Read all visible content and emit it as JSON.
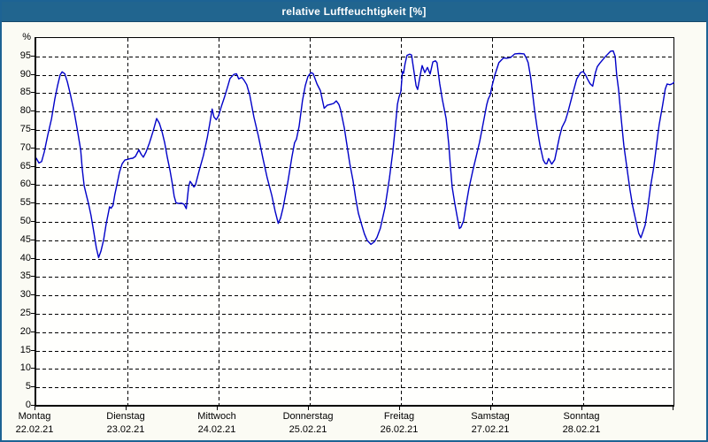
{
  "window": {
    "title": "relative Luftfeuchtigkeit [%]",
    "title_bar_color": "#21658f",
    "border_color": "#1d6394"
  },
  "chart_data": {
    "type": "line",
    "title": "relative Luftfeuchtigkeit [%]",
    "unit_label": "%",
    "ylabel": "%",
    "ylim": [
      0,
      100
    ],
    "y_tick_step": 5,
    "y_tick_labels": [
      "0",
      "5",
      "10",
      "15",
      "20",
      "25",
      "30",
      "35",
      "40",
      "45",
      "50",
      "55",
      "60",
      "65",
      "70",
      "75",
      "80",
      "85",
      "90",
      "95"
    ],
    "grid": "dashed-black",
    "legend": "none",
    "line_color": "#0000c8",
    "hours_per_day": 24,
    "x_axis_days": [
      {
        "name": "Montag",
        "date": "22.02.21"
      },
      {
        "name": "Dienstag",
        "date": "23.02.21"
      },
      {
        "name": "Mittwoch",
        "date": "24.02.21"
      },
      {
        "name": "Donnerstag",
        "date": "25.02.21"
      },
      {
        "name": "Freitag",
        "date": "26.02.21"
      },
      {
        "name": "Samstag",
        "date": "27.02.21"
      },
      {
        "name": "Sonntag",
        "date": "28.02.21"
      }
    ],
    "series": [
      {
        "name": "relative Luftfeuchtigkeit",
        "unit": "%",
        "points_hour_value": [
          [
            0,
            67.3
          ],
          [
            0.7,
            66
          ],
          [
            1.4,
            66.4
          ],
          [
            2.1,
            69
          ],
          [
            3,
            73.5
          ],
          [
            4,
            78
          ],
          [
            4.9,
            83.5
          ],
          [
            5.6,
            87
          ],
          [
            6.3,
            90
          ],
          [
            6.8,
            90.8
          ],
          [
            7.5,
            90.3
          ],
          [
            8.2,
            88
          ],
          [
            8.9,
            85
          ],
          [
            10,
            79.8
          ],
          [
            10.9,
            74.5
          ],
          [
            11.7,
            69.5
          ],
          [
            12.1,
            64.5
          ],
          [
            12.6,
            59.8
          ],
          [
            13.3,
            56.8
          ],
          [
            13.7,
            55.2
          ],
          [
            14.4,
            51.8
          ],
          [
            15.1,
            47.5
          ],
          [
            15.8,
            43
          ],
          [
            16.4,
            40.3
          ],
          [
            17,
            42
          ],
          [
            17.7,
            45
          ],
          [
            18.4,
            49.5
          ],
          [
            19,
            52.5
          ],
          [
            19.3,
            54.1
          ],
          [
            19.7,
            53.7
          ],
          [
            20.2,
            54.5
          ],
          [
            20.7,
            57.5
          ],
          [
            21.2,
            60
          ],
          [
            21.9,
            63.5
          ],
          [
            22.6,
            65.8
          ],
          [
            23.3,
            66.8
          ],
          [
            24,
            67
          ],
          [
            24.7,
            67.2
          ],
          [
            25.4,
            67.3
          ],
          [
            26.1,
            67.8
          ],
          [
            27,
            69.6
          ],
          [
            27.6,
            68.4
          ],
          [
            28.2,
            67.6
          ],
          [
            28.9,
            69
          ],
          [
            29.8,
            71.5
          ],
          [
            30.8,
            74.8
          ],
          [
            31.7,
            78.1
          ],
          [
            32.4,
            76.8
          ],
          [
            33.1,
            74.5
          ],
          [
            33.8,
            71.5
          ],
          [
            34.5,
            67.5
          ],
          [
            35.2,
            64
          ],
          [
            35.8,
            60.5
          ],
          [
            36.3,
            57
          ],
          [
            36.8,
            55.2
          ],
          [
            37.5,
            55
          ],
          [
            38.2,
            55.1
          ],
          [
            38.9,
            54.8
          ],
          [
            39.5,
            53.6
          ],
          [
            40.1,
            59.5
          ],
          [
            40.5,
            61
          ],
          [
            41,
            60.3
          ],
          [
            41.5,
            59.5
          ],
          [
            41.9,
            60
          ],
          [
            42.9,
            64
          ],
          [
            44,
            68
          ],
          [
            45,
            72.8
          ],
          [
            45.7,
            76.8
          ],
          [
            46.3,
            80.7
          ],
          [
            46.8,
            78.5
          ],
          [
            47.4,
            77.8
          ],
          [
            48,
            78.9
          ],
          [
            48.7,
            81.3
          ],
          [
            49.6,
            84.1
          ],
          [
            50.3,
            86.5
          ],
          [
            51,
            89
          ],
          [
            52,
            90.1
          ],
          [
            52.7,
            90.3
          ],
          [
            53.3,
            88.9
          ],
          [
            54.1,
            89.3
          ],
          [
            54.7,
            88.5
          ],
          [
            55.4,
            87.3
          ],
          [
            56.2,
            84.5
          ],
          [
            57.3,
            78.5
          ],
          [
            58.5,
            73.2
          ],
          [
            59.6,
            67.6
          ],
          [
            60.8,
            62
          ],
          [
            62,
            57.2
          ],
          [
            62.9,
            52.9
          ],
          [
            63.7,
            49.6
          ],
          [
            64.3,
            51
          ],
          [
            65,
            54
          ],
          [
            66.2,
            60.6
          ],
          [
            67.3,
            67.6
          ],
          [
            68,
            71.5
          ],
          [
            68.5,
            72.5
          ],
          [
            69.2,
            76
          ],
          [
            70.1,
            83
          ],
          [
            70.8,
            87
          ],
          [
            71.5,
            89.5
          ],
          [
            72,
            90.2
          ],
          [
            72.4,
            90.6
          ],
          [
            72.9,
            90.3
          ],
          [
            73.9,
            87.5
          ],
          [
            74.8,
            85.7
          ],
          [
            75.8,
            80.9
          ],
          [
            76.6,
            81.7
          ],
          [
            77.6,
            82
          ],
          [
            78.3,
            82.2
          ],
          [
            79,
            82.9
          ],
          [
            79.7,
            81.9
          ],
          [
            80.1,
            80.5
          ],
          [
            81.1,
            75.5
          ],
          [
            81.8,
            70.8
          ],
          [
            82.5,
            66
          ],
          [
            83.4,
            61.2
          ],
          [
            84.1,
            56.4
          ],
          [
            84.8,
            52.4
          ],
          [
            85.7,
            49.1
          ],
          [
            86.4,
            46.7
          ],
          [
            87.1,
            45
          ],
          [
            88.1,
            43.9
          ],
          [
            89,
            44.6
          ],
          [
            89.7,
            45.8
          ],
          [
            90.6,
            48.3
          ],
          [
            91.8,
            53.9
          ],
          [
            93,
            62
          ],
          [
            93.9,
            69.4
          ],
          [
            94.6,
            76.6
          ],
          [
            95.1,
            82
          ],
          [
            95.5,
            84
          ],
          [
            96,
            85.5
          ],
          [
            96.4,
            90.9
          ],
          [
            96.7,
            90.4
          ],
          [
            97.1,
            93
          ],
          [
            97.6,
            95.3
          ],
          [
            98.3,
            95.6
          ],
          [
            98.8,
            95.4
          ],
          [
            99.5,
            90.5
          ],
          [
            100,
            87
          ],
          [
            100.4,
            86
          ],
          [
            101.1,
            90
          ],
          [
            101.6,
            92.5
          ],
          [
            102.3,
            90.6
          ],
          [
            103,
            92
          ],
          [
            103.7,
            90.2
          ],
          [
            104.4,
            93.5
          ],
          [
            105.1,
            93.8
          ],
          [
            105.5,
            93.3
          ],
          [
            106.2,
            87.7
          ],
          [
            106.9,
            83.3
          ],
          [
            107.9,
            78.1
          ],
          [
            108.6,
            71
          ],
          [
            109,
            65.5
          ],
          [
            109.5,
            59.5
          ],
          [
            110.2,
            55
          ],
          [
            110.8,
            51.5
          ],
          [
            111.4,
            48.2
          ],
          [
            111.8,
            48.5
          ],
          [
            112.5,
            50.3
          ],
          [
            113.2,
            54.8
          ],
          [
            113.9,
            59
          ],
          [
            114.9,
            63.8
          ],
          [
            115.6,
            66.8
          ],
          [
            116.7,
            71.6
          ],
          [
            117.4,
            75.3
          ],
          [
            118.6,
            81.9
          ],
          [
            119,
            83.4
          ],
          [
            119.5,
            84.5
          ],
          [
            120,
            87
          ],
          [
            120.7,
            89.8
          ],
          [
            121.8,
            93.3
          ],
          [
            123,
            94.6
          ],
          [
            123.9,
            94.5
          ],
          [
            124.9,
            94.7
          ],
          [
            126,
            95.7
          ],
          [
            127.2,
            95.8
          ],
          [
            128.4,
            95.7
          ],
          [
            129,
            94.6
          ],
          [
            129.5,
            93.3
          ],
          [
            130.2,
            89
          ],
          [
            131.2,
            80.3
          ],
          [
            131.9,
            75.3
          ],
          [
            132.6,
            70.9
          ],
          [
            133.5,
            66.8
          ],
          [
            134,
            65.9
          ],
          [
            134.4,
            65.8
          ],
          [
            134.9,
            67.2
          ],
          [
            135.7,
            65.7
          ],
          [
            136.5,
            66.9
          ],
          [
            137.7,
            72.9
          ],
          [
            138.4,
            75.7
          ],
          [
            139.3,
            77.5
          ],
          [
            140,
            79.9
          ],
          [
            141.2,
            84.7
          ],
          [
            142.3,
            88.9
          ],
          [
            143.3,
            90.6
          ],
          [
            144,
            90.9
          ],
          [
            144.7,
            89.8
          ],
          [
            145.1,
            88.9
          ],
          [
            145.8,
            87.6
          ],
          [
            146.5,
            86.9
          ],
          [
            147.2,
            90.5
          ],
          [
            147.7,
            92.2
          ],
          [
            148.4,
            93.2
          ],
          [
            149.8,
            94.9
          ],
          [
            151.2,
            96.4
          ],
          [
            151.9,
            96.5
          ],
          [
            152.4,
            95
          ],
          [
            152.8,
            90
          ],
          [
            153.3,
            86.1
          ],
          [
            154,
            78.1
          ],
          [
            154.7,
            70.8
          ],
          [
            155.6,
            64
          ],
          [
            156.3,
            58.8
          ],
          [
            157,
            54.4
          ],
          [
            157.9,
            50.1
          ],
          [
            158.6,
            46.9
          ],
          [
            159.2,
            45.7
          ],
          [
            160.3,
            49.1
          ],
          [
            161,
            53.9
          ],
          [
            161.7,
            59.5
          ],
          [
            162.6,
            65
          ],
          [
            163.3,
            70.8
          ],
          [
            164,
            76.4
          ],
          [
            164.9,
            81.7
          ],
          [
            165.6,
            86.1
          ],
          [
            166.1,
            87.5
          ],
          [
            166.8,
            87.3
          ],
          [
            167.5,
            87.6
          ],
          [
            168,
            88
          ]
        ]
      }
    ]
  }
}
